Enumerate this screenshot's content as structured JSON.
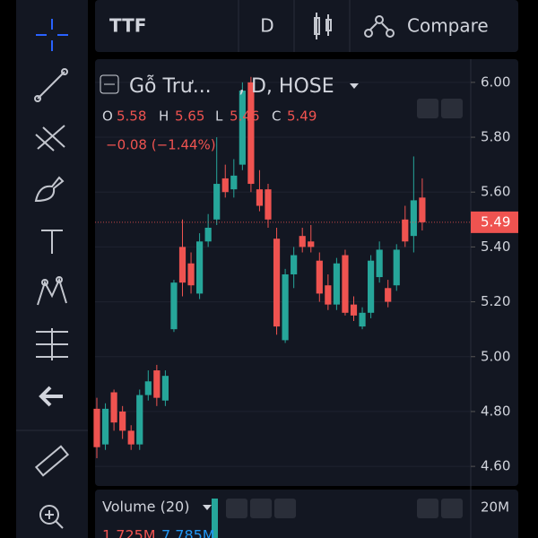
{
  "toolbar": {
    "symbol": "TTF",
    "interval": "D",
    "compare": "Compare"
  },
  "legend": {
    "name": "Gỗ Trư...",
    "suffix": ", D, HOSE",
    "o_label": "O",
    "o": "5.58",
    "h_label": "H",
    "h": "5.65",
    "l_label": "L",
    "l": "5.46",
    "c_label": "C",
    "c": "5.49",
    "change": "−0.08 (−1.44%)"
  },
  "volume": {
    "title": "Volume (20)",
    "v1": "1.725M",
    "v2": "7.785M",
    "axis_label": "20M"
  },
  "chart_data": {
    "type": "candlestick",
    "up_color": "#26a69a",
    "down_color": "#ef5350",
    "open": [
      4.81,
      4.68,
      4.87,
      4.8,
      4.73,
      4.68,
      4.86,
      4.95,
      4.84,
      5.1,
      5.4,
      5.34,
      5.23,
      5.42,
      5.5,
      5.65,
      5.61,
      5.7,
      6.0,
      5.61,
      5.61,
      5.43,
      5.06,
      5.3,
      5.44,
      5.42,
      5.35,
      5.26,
      5.19,
      5.37,
      5.19,
      5.11,
      5.16,
      5.29,
      5.25,
      5.26,
      5.5,
      5.44,
      5.58
    ],
    "high": [
      4.85,
      4.83,
      4.88,
      4.82,
      4.75,
      4.88,
      4.95,
      4.97,
      4.95,
      5.28,
      5.5,
      5.38,
      5.45,
      5.52,
      5.8,
      5.7,
      5.72,
      6.0,
      6.02,
      5.68,
      5.63,
      5.47,
      5.32,
      5.4,
      5.47,
      5.48,
      5.38,
      5.3,
      5.36,
      5.39,
      5.22,
      5.18,
      5.37,
      5.42,
      5.28,
      5.41,
      5.55,
      5.73,
      5.65
    ],
    "low": [
      4.63,
      4.66,
      4.73,
      4.7,
      4.66,
      4.66,
      4.84,
      4.82,
      4.82,
      5.09,
      5.22,
      5.23,
      5.21,
      5.4,
      5.48,
      5.58,
      5.58,
      5.68,
      5.6,
      5.53,
      5.47,
      5.08,
      5.05,
      5.25,
      5.38,
      5.38,
      5.2,
      5.17,
      5.17,
      5.15,
      5.13,
      5.1,
      5.14,
      5.27,
      5.18,
      5.24,
      5.4,
      5.38,
      5.46
    ],
    "close": [
      4.67,
      4.81,
      4.76,
      4.73,
      4.68,
      4.86,
      4.91,
      4.85,
      4.93,
      5.27,
      5.27,
      5.26,
      5.42,
      5.47,
      5.63,
      5.6,
      5.66,
      5.97,
      5.63,
      5.55,
      5.5,
      5.11,
      5.3,
      5.37,
      5.4,
      5.4,
      5.23,
      5.19,
      5.34,
      5.16,
      5.15,
      5.16,
      5.35,
      5.39,
      5.2,
      5.39,
      5.42,
      5.57,
      5.49
    ],
    "ylim": [
      4.535,
      6.078
    ],
    "yticks": [
      {
        "value": 6,
        "label": "6.00"
      },
      {
        "value": 5.8,
        "label": "5.80"
      },
      {
        "value": 5.6,
        "label": "5.60"
      },
      {
        "value": 5.4,
        "label": "5.40"
      },
      {
        "value": 5.2,
        "label": "5.20"
      },
      {
        "value": 5,
        "label": "5.00"
      },
      {
        "value": 4.8,
        "label": "4.80"
      },
      {
        "value": 4.6,
        "label": "4.60"
      }
    ],
    "last_price": 5.49,
    "grid": true
  }
}
